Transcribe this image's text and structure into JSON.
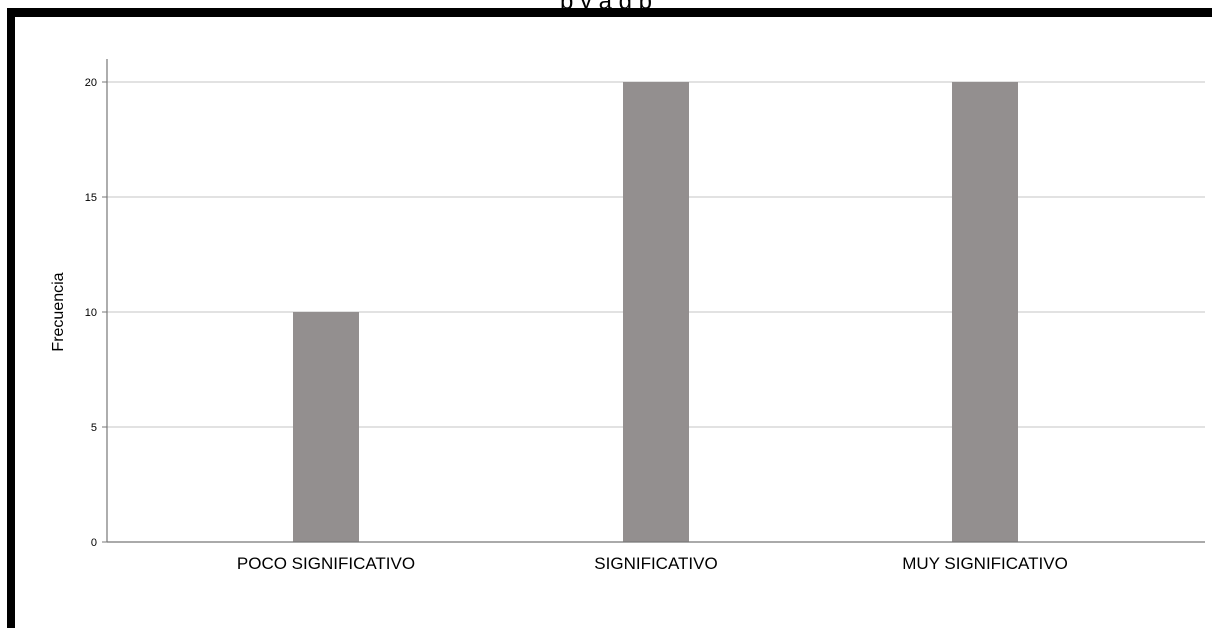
{
  "chart_data": {
    "type": "bar",
    "title": "",
    "xlabel": "",
    "ylabel": "Frecuencia",
    "categories": [
      "POCO SIGNIFICATIVO",
      "SIGNIFICATIVO",
      "MUY SIGNIFICATIVO"
    ],
    "values": [
      10,
      20,
      20
    ],
    "ylim": [
      0,
      21
    ],
    "yticks": [
      0,
      5,
      10,
      15,
      20
    ],
    "grid": true,
    "bar_color": "#938f8f",
    "grid_color": "#d9d9d9",
    "axis_color": "#777777"
  }
}
